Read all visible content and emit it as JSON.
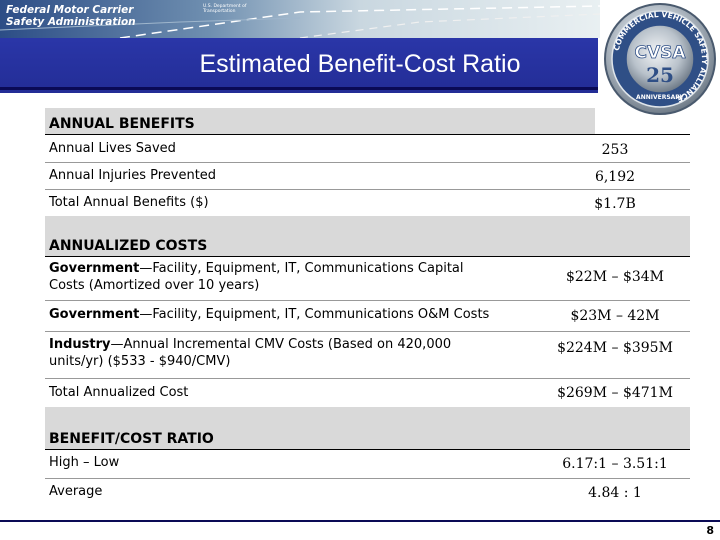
{
  "header": {
    "agency": "Federal Motor Carrier Safety Administration",
    "agency_line1": "Federal Motor Carrier",
    "agency_line2": "Safety Administration",
    "dot_line1": "U.S. Department of",
    "dot_line2": "Transportation",
    "title": "Estimated Benefit-Cost Ratio"
  },
  "seal": {
    "center": "CVSA",
    "number": "25",
    "ring_text": "COMMERCIAL VEHICLE SAFETY ALLIANCE",
    "bottom_text": "ANNIVERSARY"
  },
  "sections": {
    "benefits": {
      "title": "ANNUAL BENEFITS",
      "rows": [
        {
          "label": "Annual Lives Saved",
          "value": "253"
        },
        {
          "label": "Annual Injuries Prevented",
          "value": "6,192"
        },
        {
          "label": "Total Annual Benefits ($)",
          "value": "$1.7B"
        }
      ]
    },
    "costs": {
      "title": "ANNUALIZED COSTS",
      "rows": [
        {
          "bold": "Government",
          "label": "—Facility, Equipment, IT, Communications Capital",
          "label2": "Costs (Amortized over 10 years)",
          "value": "$22M – $34M"
        },
        {
          "bold": "Government",
          "label": "—Facility, Equipment, IT, Communications O&M Costs",
          "value": "$23M – 42M"
        },
        {
          "bold": "Industry",
          "label": "—Annual Incremental CMV Costs (Based on 420,000",
          "label2": "units/yr) ($533 - $940/CMV)",
          "value": "$224M – $395M"
        },
        {
          "label": "Total Annualized Cost",
          "value": "$269M – $471M"
        }
      ]
    },
    "ratio": {
      "title": "BENEFIT/COST RATIO",
      "rows": [
        {
          "label": "High – Low",
          "value": "6.17:1  –  3.51:1"
        },
        {
          "label": "Average",
          "value": "4.84 : 1"
        }
      ]
    }
  },
  "footer": {
    "page_number": "8"
  },
  "colors": {
    "title_bar": "#2a36a8",
    "section_bg": "#d9d9d9",
    "band": "#2c4d86"
  }
}
